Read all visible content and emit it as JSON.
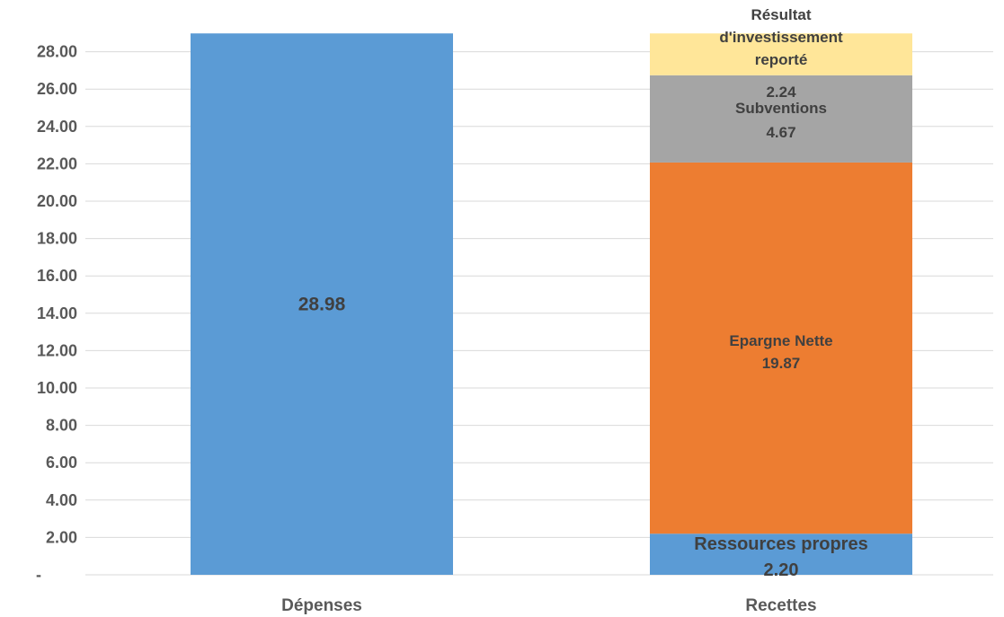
{
  "chart_data": {
    "type": "bar",
    "stacked": true,
    "categories": [
      "Dépenses",
      "Recettes"
    ],
    "series": [
      {
        "name": "",
        "values": [
          28.98,
          0
        ],
        "label": "28.98",
        "color": "#5b9bd5"
      },
      {
        "name": "Ressources propres",
        "values": [
          0,
          2.2
        ],
        "label": "2.20",
        "color": "#5b9bd5"
      },
      {
        "name": "Epargne Nette",
        "values": [
          0,
          19.87
        ],
        "label": "19.87",
        "color": "#ed7d31"
      },
      {
        "name": "Subventions",
        "values": [
          0,
          4.67
        ],
        "label": "4.67",
        "color": "#a5a5a5"
      },
      {
        "name": "Résultat d'investissement reporté",
        "values": [
          0,
          2.24
        ],
        "label": "2.24",
        "color": "#ffe699"
      }
    ],
    "yticks": [
      "-",
      "2.00",
      "4.00",
      "6.00",
      "8.00",
      "10.00",
      "12.00",
      "14.00",
      "16.00",
      "18.00",
      "20.00",
      "22.00",
      "24.00",
      "26.00",
      "28.00"
    ],
    "ylim": [
      0,
      29
    ],
    "grid": true,
    "legend": "none",
    "colors": {
      "grid": "#d9d9d9",
      "axis_text": "#595959",
      "label_text": "#404040"
    }
  }
}
